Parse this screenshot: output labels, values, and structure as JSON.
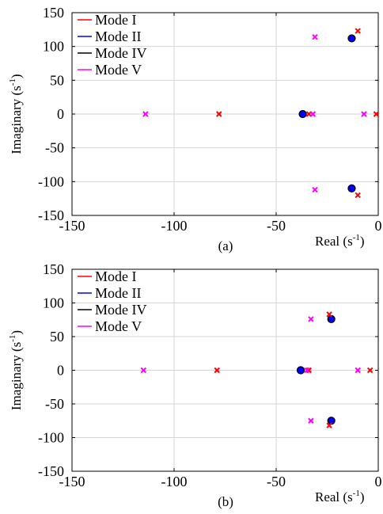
{
  "chart_data": [
    {
      "type": "scatter",
      "panel_label": "(a)",
      "xlabel": "Real (s",
      "xlabel_sup": "-1",
      "xlabel_end": ")",
      "ylabel": "Imaginary (s",
      "ylabel_sup": "-1",
      "ylabel_end": ")",
      "xlim": [
        -150,
        0
      ],
      "ylim": [
        -150,
        150
      ],
      "xticks": [
        -150,
        -100,
        -50,
        0
      ],
      "yticks": [
        150,
        100,
        50,
        0,
        -50,
        -100,
        -150
      ],
      "xtick_labels": [
        "-150",
        "-100",
        "-50",
        "0"
      ],
      "ytick_labels": [
        "150",
        "100",
        "50",
        "0",
        "-50",
        "-100",
        "-150"
      ],
      "grid": true,
      "legend_position": "top-left",
      "series": [
        {
          "name": "Mode I",
          "color": "#ff0000",
          "marker": "x",
          "points": [
            [
              -10,
              123
            ],
            [
              -10,
              -120
            ],
            [
              -78,
              0
            ],
            [
              -34,
              0
            ],
            [
              -1,
              0
            ]
          ]
        },
        {
          "name": "Mode II",
          "color": "#0000ff",
          "marker": "dot",
          "points": [
            [
              -13,
              112
            ],
            [
              -13,
              -110
            ],
            [
              -37,
              0
            ]
          ]
        },
        {
          "name": "Mode IV",
          "color": "#000000",
          "marker": "dot-ring",
          "points": [
            [
              -13,
              112
            ],
            [
              -13,
              -110
            ],
            [
              -37,
              0
            ]
          ]
        },
        {
          "name": "Mode V",
          "color": "#ff00ff",
          "marker": "x",
          "points": [
            [
              -31,
              114
            ],
            [
              -31,
              -112
            ],
            [
              -114,
              0
            ],
            [
              -32,
              0
            ],
            [
              -7,
              0
            ]
          ]
        }
      ]
    },
    {
      "type": "scatter",
      "panel_label": "(b)",
      "xlabel": "Real (s",
      "xlabel_sup": "-1",
      "xlabel_end": ")",
      "ylabel": "Imaginary (s",
      "ylabel_sup": "-1",
      "ylabel_end": ")",
      "xlim": [
        -150,
        0
      ],
      "ylim": [
        -150,
        150
      ],
      "xticks": [
        -150,
        -100,
        -50,
        0
      ],
      "yticks": [
        150,
        100,
        50,
        0,
        -50,
        -100,
        -150
      ],
      "xtick_labels": [
        "-150",
        "-100",
        "-50",
        "0"
      ],
      "ytick_labels": [
        "150",
        "100",
        "50",
        "0",
        "-50",
        "-100",
        "-150"
      ],
      "grid": true,
      "legend_position": "top-left",
      "series": [
        {
          "name": "Mode I",
          "color": "#ff0000",
          "marker": "x",
          "points": [
            [
              -24,
              83
            ],
            [
              -24,
              -82
            ],
            [
              -79,
              0
            ],
            [
              -34,
              0
            ],
            [
              -4,
              0
            ]
          ]
        },
        {
          "name": "Mode II",
          "color": "#0000ff",
          "marker": "dot",
          "points": [
            [
              -23,
              76
            ],
            [
              -23,
              -75
            ],
            [
              -38,
              0
            ]
          ]
        },
        {
          "name": "Mode IV",
          "color": "#000000",
          "marker": "dot-ring",
          "points": [
            [
              -23,
              76
            ],
            [
              -23,
              -75
            ],
            [
              -38,
              0
            ]
          ]
        },
        {
          "name": "Mode V",
          "color": "#ff00ff",
          "marker": "x",
          "points": [
            [
              -33,
              76
            ],
            [
              -33,
              -75
            ],
            [
              -115,
              0
            ],
            [
              -35,
              0
            ],
            [
              -10,
              0
            ]
          ]
        }
      ]
    }
  ]
}
